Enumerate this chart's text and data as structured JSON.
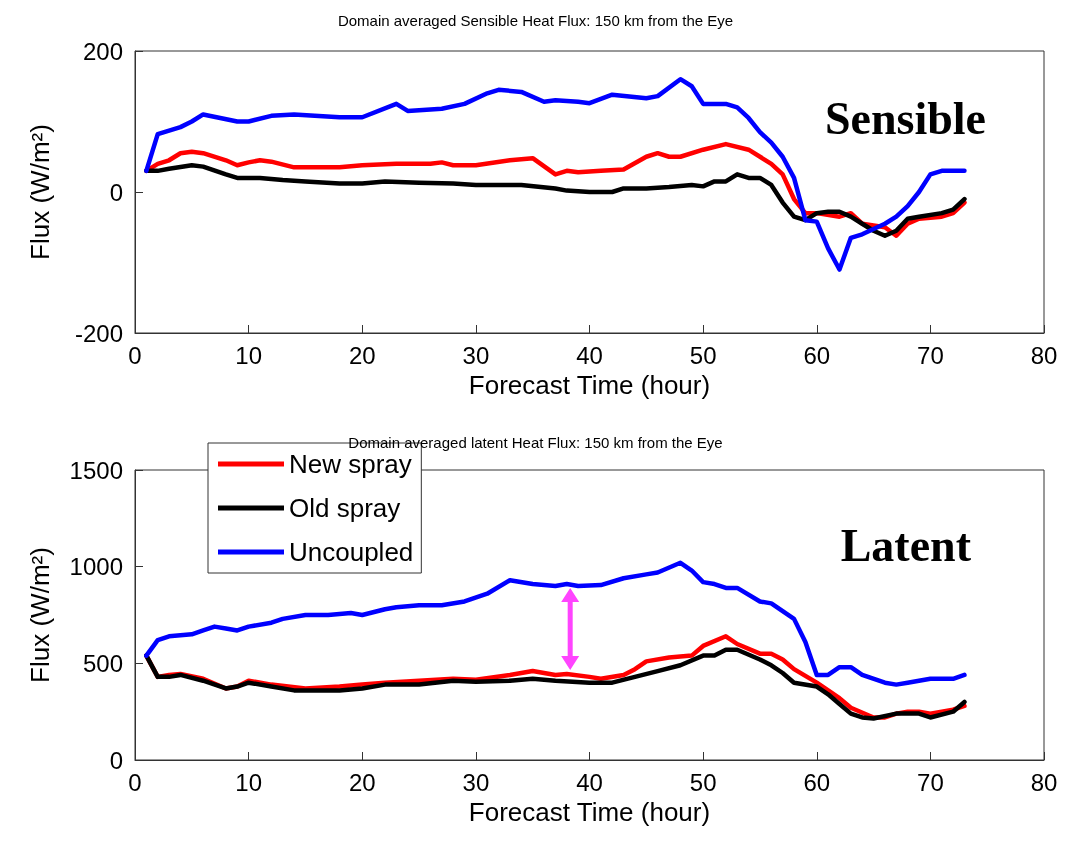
{
  "chart_data": [
    {
      "type": "line",
      "title": "Domain averaged Sensible Heat Flux: 150 km from the Eye",
      "xlabel": "Forecast Time (hour)",
      "ylabel": "Flux (W/m²)",
      "xlim": [
        0,
        80
      ],
      "xticks": [
        0,
        10,
        20,
        30,
        40,
        50,
        60,
        70,
        80
      ],
      "ylim": [
        -200,
        200
      ],
      "yticks": [
        -200,
        0,
        200
      ],
      "marker": "none",
      "line_style": "solid",
      "legend": false,
      "annotations": [
        "Sensible"
      ],
      "series": [
        {
          "color": "#ff0000",
          "x": [
            1,
            2,
            3,
            4,
            5,
            6,
            8,
            9,
            10,
            11,
            12,
            14,
            18,
            20,
            23,
            26,
            27,
            28,
            30,
            33,
            35,
            37,
            38,
            39,
            41,
            43,
            45,
            46,
            47,
            48,
            50,
            52,
            54,
            56,
            57,
            58,
            59,
            60,
            62,
            63,
            64,
            66,
            67,
            68,
            69,
            71,
            72,
            73
          ],
          "values": [
            30,
            40,
            45,
            55,
            57,
            55,
            45,
            38,
            42,
            45,
            43,
            35,
            35,
            38,
            40,
            40,
            42,
            38,
            38,
            45,
            48,
            25,
            30,
            28,
            30,
            32,
            50,
            55,
            50,
            50,
            60,
            68,
            60,
            40,
            25,
            -10,
            -30,
            -30,
            -35,
            -30,
            -45,
            -50,
            -62,
            -45,
            -38,
            -35,
            -30,
            -15
          ]
        },
        {
          "color": "#000000",
          "x": [
            1,
            2,
            3,
            5,
            6,
            8,
            9,
            11,
            13,
            15,
            18,
            20,
            22,
            25,
            28,
            30,
            34,
            37,
            38,
            40,
            42,
            43,
            45,
            47,
            49,
            50,
            51,
            52,
            53,
            54,
            55,
            56,
            57,
            58,
            59,
            60,
            61,
            62,
            63,
            64,
            65,
            66,
            67,
            68,
            69,
            71,
            72,
            73
          ],
          "values": [
            30,
            30,
            33,
            38,
            36,
            25,
            20,
            20,
            17,
            15,
            12,
            12,
            15,
            13,
            12,
            10,
            10,
            5,
            2,
            0,
            0,
            5,
            5,
            7,
            10,
            8,
            15,
            15,
            25,
            20,
            20,
            10,
            -15,
            -35,
            -40,
            -30,
            -28,
            -28,
            -35,
            -45,
            -55,
            -62,
            -55,
            -38,
            -35,
            -30,
            -25,
            -10
          ]
        },
        {
          "color": "#0000ff",
          "x": [
            1,
            2,
            4,
            5,
            6,
            9,
            10,
            12,
            14,
            18,
            20,
            23,
            24,
            27,
            29,
            31,
            32,
            34,
            36,
            37,
            39,
            40,
            42,
            45,
            46,
            48,
            49,
            50,
            52,
            53,
            54,
            55,
            56,
            57,
            58,
            59,
            60,
            61,
            62,
            63,
            64,
            66,
            67,
            68,
            69,
            70,
            71,
            73
          ],
          "values": [
            30,
            82,
            92,
            100,
            110,
            100,
            100,
            108,
            110,
            106,
            106,
            125,
            115,
            118,
            125,
            140,
            145,
            142,
            128,
            130,
            128,
            126,
            138,
            133,
            136,
            160,
            150,
            125,
            125,
            120,
            105,
            85,
            70,
            50,
            20,
            -40,
            -42,
            -80,
            -110,
            -65,
            -60,
            -45,
            -35,
            -20,
            0,
            25,
            30,
            30
          ]
        }
      ]
    },
    {
      "type": "line",
      "title": "Domain averaged latent Heat Flux: 150 km from the Eye",
      "xlabel": "Forecast Time (hour)",
      "ylabel": "Flux (W/m²)",
      "xlim": [
        0,
        80
      ],
      "xticks": [
        0,
        10,
        20,
        30,
        40,
        50,
        60,
        70,
        80
      ],
      "ylim": [
        0,
        1500
      ],
      "yticks": [
        0,
        500,
        1000,
        1500
      ],
      "marker": "none",
      "line_style": "solid",
      "legend": "top left",
      "annotations": [
        "Latent"
      ],
      "series": [
        {
          "name": "New spray",
          "color": "#ff0000",
          "x": [
            1,
            2,
            3,
            4,
            6,
            8,
            9,
            10,
            12,
            15,
            18,
            20,
            22,
            25,
            28,
            30,
            33,
            35,
            37,
            38,
            40,
            41,
            43,
            44,
            45,
            47,
            49,
            50,
            52,
            53,
            55,
            56,
            57,
            58,
            60,
            62,
            63,
            65,
            66,
            67,
            68,
            69,
            70,
            72,
            73
          ],
          "values": [
            540,
            430,
            440,
            445,
            420,
            370,
            380,
            410,
            390,
            370,
            380,
            390,
            400,
            410,
            420,
            415,
            440,
            460,
            440,
            445,
            430,
            420,
            440,
            470,
            510,
            530,
            540,
            590,
            640,
            600,
            550,
            550,
            520,
            470,
            400,
            320,
            270,
            220,
            220,
            240,
            250,
            250,
            240,
            260,
            280
          ]
        },
        {
          "name": "Old spray",
          "color": "#000000",
          "x": [
            1,
            2,
            3,
            4,
            6,
            8,
            9,
            10,
            12,
            14,
            15,
            18,
            20,
            22,
            25,
            28,
            30,
            33,
            35,
            37,
            40,
            42,
            44,
            46,
            48,
            50,
            51,
            52,
            53,
            55,
            56,
            57,
            58,
            60,
            61,
            62,
            63,
            64,
            65,
            67,
            69,
            70,
            72,
            73
          ],
          "values": [
            540,
            430,
            430,
            440,
            410,
            370,
            380,
            400,
            380,
            360,
            360,
            360,
            370,
            390,
            390,
            410,
            405,
            410,
            420,
            410,
            400,
            400,
            430,
            460,
            490,
            540,
            540,
            570,
            570,
            520,
            490,
            450,
            400,
            380,
            340,
            290,
            240,
            220,
            215,
            240,
            240,
            220,
            250,
            300
          ]
        },
        {
          "name": "Uncoupled",
          "color": "#0000ff",
          "x": [
            1,
            2,
            3,
            5,
            6,
            7,
            8,
            9,
            10,
            12,
            13,
            15,
            17,
            19,
            20,
            22,
            23,
            25,
            27,
            29,
            31,
            33,
            35,
            37,
            38,
            39,
            41,
            43,
            45,
            46,
            48,
            49,
            50,
            51,
            52,
            53,
            55,
            56,
            57,
            58,
            59,
            60,
            61,
            62,
            63,
            64,
            66,
            67,
            68,
            69,
            70,
            71,
            72,
            73
          ],
          "values": [
            540,
            620,
            640,
            650,
            670,
            690,
            680,
            670,
            690,
            710,
            730,
            750,
            750,
            760,
            750,
            780,
            790,
            800,
            800,
            820,
            860,
            930,
            910,
            900,
            910,
            900,
            905,
            940,
            960,
            970,
            1020,
            980,
            920,
            910,
            890,
            890,
            820,
            810,
            770,
            730,
            610,
            440,
            440,
            480,
            480,
            440,
            400,
            390,
            400,
            410,
            420,
            420,
            420,
            440
          ]
        }
      ]
    }
  ]
}
